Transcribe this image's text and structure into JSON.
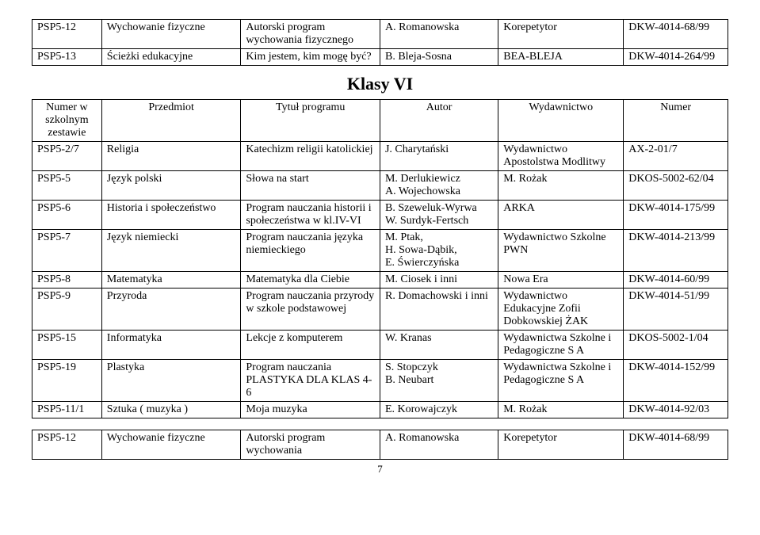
{
  "top_table": {
    "rows": [
      {
        "num": "PSP5-12",
        "subject": "Wychowanie fizyczne",
        "program": "Autorski program wychowania fizycznego",
        "author": "A. Romanowska",
        "publisher": "Korepetytor",
        "code": "DKW-4014-68/99"
      },
      {
        "num": "PSP5-13",
        "subject": "Ścieżki edukacyjne",
        "program": "Kim jestem, kim mogę być?",
        "author": "B. Bleja-Sosna",
        "publisher": "BEA-BLEJA",
        "code": "DKW-4014-264/99"
      }
    ]
  },
  "section_title": "Klasy VI",
  "header": {
    "num": "Numer w szkolnym zestawie",
    "subject": "Przedmiot",
    "program": "Tytuł programu",
    "author": "Autor",
    "publisher": "Wydawnictwo",
    "code": "Numer"
  },
  "main_table": {
    "rows": [
      {
        "num": "PSP5-2/7",
        "subject": "Religia",
        "program": "Katechizm religii katolickiej",
        "author": "J. Charytański",
        "publisher": "Wydawnictwo Apostolstwa Modlitwy",
        "code": "AX-2-01/7"
      },
      {
        "num": "PSP5-5",
        "subject": "Język polski",
        "program": "Słowa na start",
        "author": "M. Derlukiewicz\nA. Wojechowska",
        "publisher": "M. Rożak",
        "code": "DKOS-5002-62/04"
      },
      {
        "num": "PSP5-6",
        "subject": "Historia i społeczeństwo",
        "program": "Program nauczania historii i społeczeństwa w kl.IV-VI",
        "author": "B. Szeweluk-Wyrwa\nW. Surdyk-Fertsch",
        "publisher": "ARKA",
        "code": "DKW-4014-175/99"
      },
      {
        "num": "PSP5-7",
        "subject": "Język niemiecki",
        "program": "Program nauczania języka niemieckiego",
        "author": "M. Ptak,\nH. Sowa-Dąbik,\nE. Świerczyńska",
        "publisher": "Wydawnictwo Szkolne PWN",
        "code": "DKW-4014-213/99"
      },
      {
        "num": "PSP5-8",
        "subject": "Matematyka",
        "program": "Matematyka dla Ciebie",
        "author": "M. Ciosek i inni",
        "publisher": "Nowa Era",
        "code": "DKW-4014-60/99"
      },
      {
        "num": "PSP5-9",
        "subject": "Przyroda",
        "program": "Program nauczania przyrody w szkole podstawowej",
        "author": "R. Domachowski i inni",
        "publisher": "Wydawnictwo Edukacyjne Zofii Dobkowskiej ŻAK",
        "code": "DKW-4014-51/99"
      },
      {
        "num": "PSP5-15",
        "subject": "Informatyka",
        "program": "Lekcje z komputerem",
        "author": "W. Kranas",
        "publisher": "Wydawnictwa Szkolne i Pedagogiczne S A",
        "code": "DKOS-5002-1/04"
      },
      {
        "num": "PSP5-19",
        "subject": "Plastyka",
        "program": "Program nauczania PLASTYKA DLA KLAS 4-6",
        "author": "S. Stopczyk\nB. Neubart",
        "publisher": "Wydawnictwa Szkolne i Pedagogiczne S A",
        "code": "DKW-4014-152/99"
      },
      {
        "num": "PSP5-11/1",
        "subject": "Sztuka ( muzyka )",
        "program": "Moja muzyka",
        "author": "E. Korowajczyk",
        "publisher": "M. Rożak",
        "code": "DKW-4014-92/03"
      }
    ]
  },
  "bottom_table": {
    "rows": [
      {
        "num": "PSP5-12",
        "subject": "Wychowanie fizyczne",
        "program": "Autorski program wychowania",
        "author": "A. Romanowska",
        "publisher": "Korepetytor",
        "code": "DKW-4014-68/99"
      }
    ]
  },
  "page_number": "7"
}
